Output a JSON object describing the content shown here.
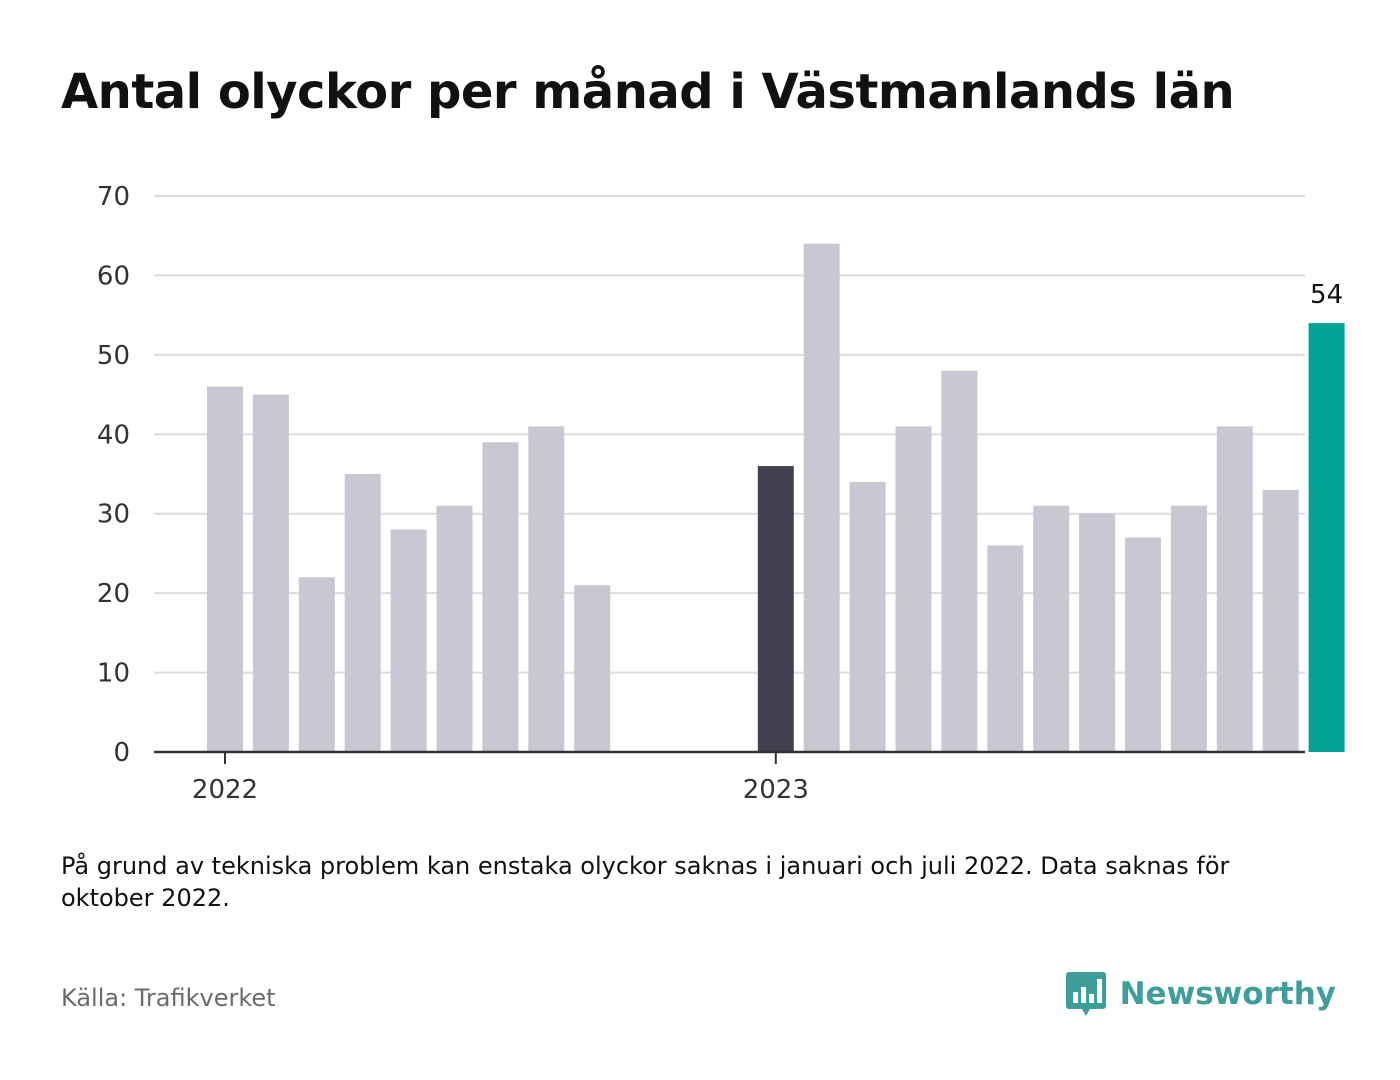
{
  "title": "Antal olyckor per månad i Västmanlands län",
  "note": "På grund av tekniska problem kan enstaka olyckor saknas i januari och juli 2022. Data saknas för oktober 2022.",
  "source": "Källa: Trafikverket",
  "brand": {
    "name": "Newsworthy",
    "icon": "bar-chart-logo-icon",
    "color": "#3f9e9a"
  },
  "colors": {
    "default": "#c8c7d2",
    "january_2023": "#42404f",
    "latest": "#00a396",
    "grid": "#dddddd",
    "axis": "#333333"
  },
  "chart_data": {
    "type": "bar",
    "title": "Antal olyckor per månad i Västmanlands län",
    "xlabel": "",
    "ylabel": "",
    "ylim": [
      0,
      70
    ],
    "yticks": [
      0,
      10,
      20,
      30,
      40,
      50,
      60,
      70
    ],
    "grid": true,
    "x_tick_labels": [
      {
        "label": "2022",
        "month": "2022-01"
      },
      {
        "label": "2023",
        "month": "2023-01"
      }
    ],
    "months": [
      "2022-01",
      "2022-02",
      "2022-03",
      "2022-04",
      "2022-05",
      "2022-06",
      "2022-07",
      "2022-08",
      "2022-09",
      "2022-10",
      "2022-11",
      "2022-12",
      "2023-01",
      "2023-02",
      "2023-03",
      "2023-04",
      "2023-05",
      "2023-06",
      "2023-07",
      "2023-08",
      "2023-09",
      "2023-10",
      "2023-11",
      "2023-12",
      "2024-01"
    ],
    "values": [
      46,
      45,
      22,
      35,
      28,
      31,
      39,
      41,
      21,
      null,
      null,
      null,
      36,
      64,
      34,
      41,
      48,
      26,
      31,
      30,
      27,
      31,
      41,
      33,
      54
    ],
    "highlights": [
      {
        "month": "2023-01",
        "color": "#42404f"
      },
      {
        "month": "2024-01",
        "color": "#00a396",
        "label": "54"
      }
    ]
  }
}
